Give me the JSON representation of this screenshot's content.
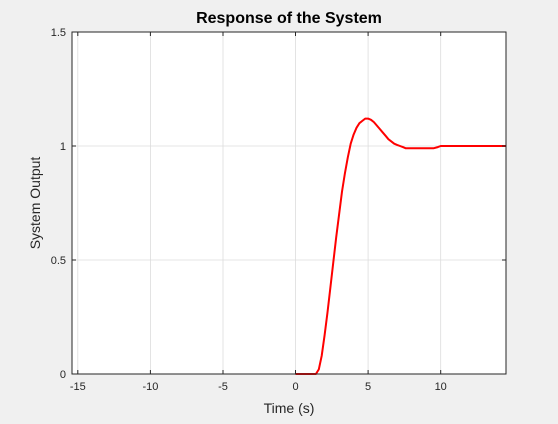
{
  "chart_data": {
    "type": "line",
    "title": "Response of the System",
    "xlabel": "Time (s)",
    "ylabel": "System Output",
    "xlim": [
      -15.4,
      14.5
    ],
    "ylim": [
      0,
      1.5
    ],
    "xticks": [
      -15,
      -10,
      -5,
      0,
      5,
      10
    ],
    "xtick_labels": [
      "-15",
      "-10",
      "-5",
      "0",
      "5",
      "10"
    ],
    "yticks": [
      0,
      0.5,
      1,
      1.5
    ],
    "ytick_labels": [
      "0",
      "0.5",
      "1",
      "1.5"
    ],
    "grid": true,
    "legend": false,
    "colors": {
      "line": "#ff0000",
      "figure_bg": "#f0f0f0",
      "axes_bg": "#ffffff",
      "grid": "#dcdcdc",
      "axis": "#262626"
    },
    "series": [
      {
        "color": "#ff0000",
        "x": [
          0,
          0.5,
          1.0,
          1.4,
          1.6,
          1.8,
          2.0,
          2.2,
          2.4,
          2.6,
          2.8,
          3.0,
          3.2,
          3.4,
          3.6,
          3.8,
          4.0,
          4.2,
          4.4,
          4.6,
          4.8,
          5.0,
          5.2,
          5.4,
          5.6,
          5.8,
          6.0,
          6.2,
          6.4,
          6.6,
          6.8,
          7.0,
          7.2,
          7.4,
          7.6,
          7.8,
          8.0,
          8.5,
          9.0,
          9.5,
          9.8,
          10.0,
          10.5,
          11.0,
          12.0,
          13.0,
          14.0,
          14.5
        ],
        "y": [
          0,
          0,
          0,
          0,
          0.02,
          0.08,
          0.17,
          0.27,
          0.38,
          0.49,
          0.6,
          0.7,
          0.8,
          0.88,
          0.95,
          1.01,
          1.05,
          1.08,
          1.1,
          1.11,
          1.12,
          1.12,
          1.115,
          1.105,
          1.09,
          1.075,
          1.06,
          1.045,
          1.03,
          1.02,
          1.01,
          1.005,
          1.0,
          0.995,
          0.99,
          0.99,
          0.99,
          0.99,
          0.99,
          0.99,
          0.995,
          1.0,
          1.0,
          1.0,
          1.0,
          1.0,
          1.0,
          1.0
        ]
      }
    ]
  }
}
